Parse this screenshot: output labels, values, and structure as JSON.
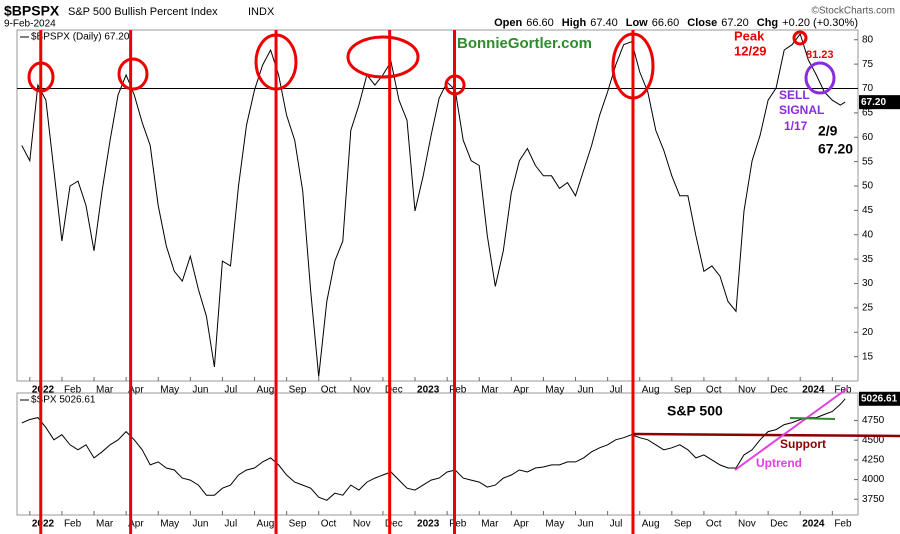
{
  "header": {
    "symbol": "$BPSPX",
    "name": "S&P 500 Bullish Percent Index",
    "exchange": "INDX",
    "date": "9-Feb-2024",
    "watermark": "©StockCharts.com",
    "quote": [
      {
        "label": "Open",
        "value": "66.60"
      },
      {
        "label": "High",
        "value": "67.40"
      },
      {
        "label": "Low",
        "value": "66.60"
      },
      {
        "label": "Close",
        "value": "67.20"
      },
      {
        "label": "Chg",
        "value": "+0.20 (+0.30%)"
      }
    ]
  },
  "annotations": [
    "BonnieGortler.com",
    "Peak",
    "12/29",
    "81.23",
    "SELL",
    "SIGNAL",
    "1/17",
    "2/9",
    "67.20",
    "S&P 500",
    "Support",
    "Uptrend"
  ],
  "signal_lines": [
    0.34,
    3.14,
    7.67,
    11.21,
    13.23,
    18.79
  ],
  "chart_data": [
    {
      "type": "line",
      "last_value_label": "67.20",
      "reference_line": 70,
      "x": [
        -0.25,
        0,
        0.25,
        0.5,
        0.75,
        1,
        1.25,
        1.5,
        1.75,
        2,
        2.25,
        2.5,
        2.75,
        3,
        3.25,
        3.5,
        3.75,
        4,
        4.25,
        4.5,
        4.75,
        5,
        5.25,
        5.5,
        5.75,
        6,
        6.25,
        6.5,
        6.75,
        7,
        7.25,
        7.5,
        7.75,
        8,
        8.25,
        8.5,
        8.75,
        9,
        9.25,
        9.5,
        9.75,
        10,
        10.25,
        10.5,
        10.75,
        11,
        11.25,
        11.5,
        11.75,
        12,
        12.25,
        12.5,
        12.75,
        13,
        13.25,
        13.5,
        13.75,
        14,
        14.25,
        14.5,
        14.75,
        15,
        15.25,
        15.5,
        15.75,
        16,
        16.25,
        16.5,
        16.75,
        17,
        17.25,
        17.5,
        17.75,
        18,
        18.25,
        18.5,
        18.75,
        19,
        19.25,
        19.5,
        19.75,
        20,
        20.25,
        20.5,
        20.75,
        21,
        21.25,
        21.5,
        21.75,
        22,
        22.25,
        22.5,
        22.75,
        23,
        23.25,
        23.5,
        23.75,
        24,
        24.25,
        24.5,
        24.75,
        25,
        25.25,
        25.4
      ],
      "series": [
        {
          "name": "$BPSPX (Daily) 67.20",
          "color": "#000000",
          "values": [
            58.3,
            55.2,
            70.7,
            67.6,
            53.2,
            38.7,
            50,
            51,
            46,
            36.7,
            49,
            59.4,
            68.7,
            72.8,
            68.7,
            63,
            58.3,
            46,
            37.7,
            32.5,
            30.5,
            35.6,
            28.8,
            23.3,
            12.9,
            34.6,
            33.6,
            50,
            62.5,
            69.7,
            74.8,
            77.9,
            72.8,
            64.5,
            59.4,
            49,
            28.4,
            10.9,
            26.3,
            34.6,
            38.7,
            61.4,
            66.6,
            72.8,
            70.7,
            72.8,
            75.5,
            67.6,
            63.5,
            44.9,
            52,
            60.4,
            68,
            71.3,
            69.7,
            59.4,
            55.2,
            54.2,
            39.8,
            29.4,
            36.7,
            48.6,
            55.2,
            57.7,
            54.2,
            52.1,
            52.1,
            49.5,
            50.7,
            48,
            53.2,
            58.3,
            64.5,
            69.3,
            74.8,
            79,
            79.6,
            73.4,
            69.3,
            61.4,
            57.3,
            52.1,
            48,
            48,
            39.8,
            32.5,
            33.6,
            31.5,
            26.3,
            24.3,
            44.9,
            55.2,
            60.4,
            67.6,
            70.1,
            77.9,
            79,
            81.2,
            75.9,
            72.8,
            69.3,
            67.6,
            66.6,
            67.2
          ]
        }
      ],
      "xlim": [
        -0.4,
        25.8
      ],
      "ylim": [
        10,
        82
      ],
      "yticks": [
        15,
        20,
        25,
        30,
        35,
        40,
        45,
        50,
        55,
        60,
        65,
        70,
        75,
        80
      ],
      "xticks": [
        {
          "value": 0,
          "label": "2022"
        },
        {
          "value": 1,
          "label": "Feb"
        },
        {
          "value": 2,
          "label": "Mar"
        },
        {
          "value": 3,
          "label": "Apr"
        },
        {
          "value": 4,
          "label": "May"
        },
        {
          "value": 5,
          "label": "Jun"
        },
        {
          "value": 6,
          "label": "Jul"
        },
        {
          "value": 7,
          "label": "Aug"
        },
        {
          "value": 8,
          "label": "Sep"
        },
        {
          "value": 9,
          "label": "Oct"
        },
        {
          "value": 10,
          "label": "Nov"
        },
        {
          "value": 11,
          "label": "Dec"
        },
        {
          "value": 12,
          "label": "2023"
        },
        {
          "value": 13,
          "label": "Feb"
        },
        {
          "value": 14,
          "label": "Mar"
        },
        {
          "value": 15,
          "label": "Apr"
        },
        {
          "value": 16,
          "label": "May"
        },
        {
          "value": 17,
          "label": "Jun"
        },
        {
          "value": 18,
          "label": "Jul"
        },
        {
          "value": 19,
          "label": "Aug"
        },
        {
          "value": 20,
          "label": "Sep"
        },
        {
          "value": 21,
          "label": "Oct"
        },
        {
          "value": 22,
          "label": "Nov"
        },
        {
          "value": 23,
          "label": "Dec"
        },
        {
          "value": 24,
          "label": "2024"
        },
        {
          "value": 25,
          "label": "Feb"
        }
      ],
      "grid": false
    },
    {
      "type": "line",
      "last_value_label": "5026.61",
      "x": [
        -0.25,
        0,
        0.25,
        0.5,
        0.75,
        1,
        1.25,
        1.5,
        1.75,
        2,
        2.25,
        2.5,
        2.75,
        3,
        3.25,
        3.5,
        3.75,
        4,
        4.25,
        4.5,
        4.75,
        5,
        5.25,
        5.5,
        5.75,
        6,
        6.25,
        6.5,
        6.75,
        7,
        7.25,
        7.5,
        7.75,
        8,
        8.25,
        8.5,
        8.75,
        9,
        9.25,
        9.5,
        9.75,
        10,
        10.25,
        10.5,
        10.75,
        11,
        11.25,
        11.5,
        11.75,
        12,
        12.25,
        12.5,
        12.75,
        13,
        13.25,
        13.5,
        13.75,
        14,
        14.25,
        14.5,
        14.75,
        15,
        15.25,
        15.5,
        15.75,
        16,
        16.25,
        16.5,
        16.75,
        17,
        17.25,
        17.5,
        17.75,
        18,
        18.25,
        18.5,
        18.75,
        19,
        19.25,
        19.5,
        19.75,
        20,
        20.25,
        20.5,
        20.75,
        21,
        21.25,
        21.5,
        21.75,
        22,
        22.25,
        22.5,
        22.75,
        23,
        23.25,
        23.5,
        23.75,
        24,
        24.25,
        24.5,
        24.75,
        25,
        25.25,
        25.4
      ],
      "series": [
        {
          "name": "$SPX 5026.61",
          "color": "#000000",
          "values": [
            4720,
            4763,
            4788,
            4660,
            4506,
            4570,
            4442,
            4378,
            4442,
            4276,
            4353,
            4442,
            4506,
            4609,
            4506,
            4378,
            4186,
            4224,
            4147,
            4122,
            4019,
            3994,
            3930,
            3801,
            3801,
            3891,
            3930,
            4058,
            4122,
            4147,
            4224,
            4276,
            4186,
            4058,
            3968,
            3930,
            3891,
            3776,
            3737,
            3827,
            3801,
            3930,
            3866,
            3968,
            4019,
            4058,
            4096,
            3994,
            3891,
            3866,
            3930,
            3994,
            4019,
            4096,
            4122,
            4019,
            3994,
            3968,
            3904,
            3930,
            4019,
            4058,
            4122,
            4096,
            4147,
            4160,
            4186,
            4186,
            4224,
            4224,
            4276,
            4353,
            4404,
            4442,
            4506,
            4532,
            4570,
            4532,
            4506,
            4442,
            4378,
            4404,
            4442,
            4378,
            4276,
            4314,
            4250,
            4186,
            4147,
            4147,
            4314,
            4378,
            4506,
            4609,
            4635,
            4699,
            4724,
            4763,
            4788,
            4788,
            4827,
            4865,
            4955,
            5026.61
          ]
        }
      ],
      "xlim": [
        -0.4,
        25.8
      ],
      "ylim": [
        3550,
        5100
      ],
      "yticks": [
        3750,
        4000,
        4250,
        4500,
        4750
      ],
      "xticks": [
        {
          "value": 0,
          "label": "2022"
        },
        {
          "value": 1,
          "label": "Feb"
        },
        {
          "value": 2,
          "label": "Mar"
        },
        {
          "value": 3,
          "label": "Apr"
        },
        {
          "value": 4,
          "label": "May"
        },
        {
          "value": 5,
          "label": "Jun"
        },
        {
          "value": 6,
          "label": "Jul"
        },
        {
          "value": 7,
          "label": "Aug"
        },
        {
          "value": 8,
          "label": "Sep"
        },
        {
          "value": 9,
          "label": "Oct"
        },
        {
          "value": 10,
          "label": "Nov"
        },
        {
          "value": 11,
          "label": "Dec"
        },
        {
          "value": 12,
          "label": "2023"
        },
        {
          "value": 13,
          "label": "Feb"
        },
        {
          "value": 14,
          "label": "Mar"
        },
        {
          "value": 15,
          "label": "Apr"
        },
        {
          "value": 16,
          "label": "May"
        },
        {
          "value": 17,
          "label": "Jun"
        },
        {
          "value": 18,
          "label": "Jul"
        },
        {
          "value": 19,
          "label": "Aug"
        },
        {
          "value": 20,
          "label": "Sep"
        },
        {
          "value": 21,
          "label": "Oct"
        },
        {
          "value": 22,
          "label": "Nov"
        },
        {
          "value": 23,
          "label": "Dec"
        },
        {
          "value": 24,
          "label": "2024"
        },
        {
          "value": 25,
          "label": "Feb"
        }
      ],
      "grid": false
    }
  ]
}
